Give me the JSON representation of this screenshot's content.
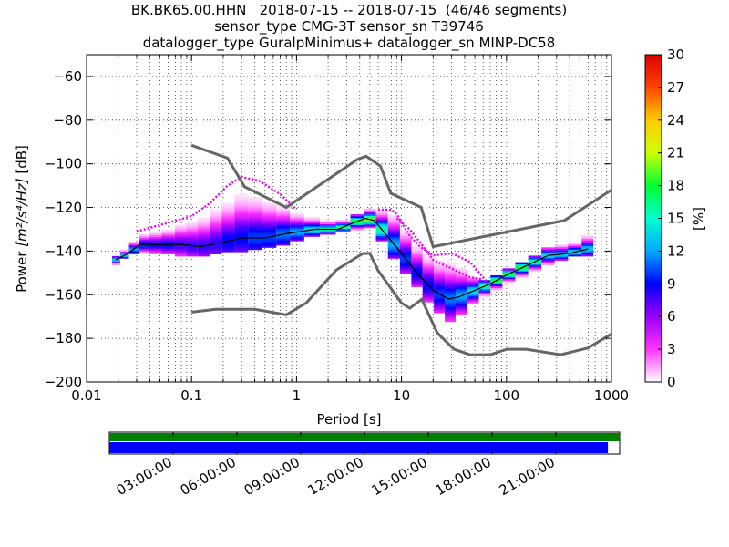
{
  "chart_data": {
    "type": "heatmap",
    "title_lines": [
      "BK.BK65.00.HHN   2018-07-15 -- 2018-07-15  (46/46 segments)",
      "sensor_type CMG-3T sensor_sn T39746",
      "datalogger_type GuralpMinimus+ datalogger_sn MINP-DC58"
    ],
    "xlabel": "Period [s]",
    "ylabel_prefix": "Power ",
    "ylabel_unit": "[m²/s⁴/Hz]",
    "ylabel_suffix": " [dB]",
    "x_scale": "log",
    "xlim": [
      0.01,
      1000
    ],
    "ylim": [
      -200,
      -50
    ],
    "x_ticks": [
      0.01,
      0.1,
      1,
      10,
      100,
      1000
    ],
    "x_tick_labels": [
      "0.01",
      "0.1",
      "1",
      "10",
      "100",
      "1000"
    ],
    "y_ticks": [
      -200,
      -180,
      -160,
      -140,
      -120,
      -100,
      -80,
      -60
    ],
    "y_tick_labels": [
      "−200",
      "−180",
      "−160",
      "−140",
      "−120",
      "−100",
      "−80",
      "−60"
    ],
    "grid": true,
    "colorbar": {
      "label": "[%]",
      "range": [
        0,
        30
      ],
      "ticks": [
        0,
        3,
        6,
        9,
        12,
        15,
        18,
        21,
        24,
        27,
        30
      ],
      "tick_labels": [
        "0",
        "3",
        "6",
        "9",
        "12",
        "15",
        "18",
        "21",
        "24",
        "27",
        "30"
      ],
      "colormap": [
        "#ffffff",
        "#ff33ff",
        "#9900ff",
        "#0000ff",
        "#00aaff",
        "#00ffcc",
        "#00ff33",
        "#ccff00",
        "#ffcc00",
        "#ff4400",
        "#dd0000"
      ]
    },
    "nhnm": {
      "name": "NHNM",
      "x": [
        0.1,
        0.22,
        0.32,
        0.8,
        3.8,
        4.6,
        6.3,
        7.9,
        15.4,
        20,
        354.8,
        1000
      ],
      "y": [
        -91.5,
        -97.4,
        -110.5,
        -120,
        -98,
        -96.5,
        -101,
        -113.5,
        -120,
        -138,
        -126,
        -112
      ]
    },
    "nlnm": {
      "name": "NLNM",
      "x": [
        0.1,
        0.17,
        0.4,
        0.8,
        1.24,
        2.4,
        4.3,
        5,
        6,
        10,
        12,
        15.6,
        21.9,
        31.6,
        45,
        70,
        101,
        154,
        328,
        600,
        1000
      ],
      "y": [
        -168,
        -166.7,
        -166.7,
        -169.2,
        -163.7,
        -148.6,
        -141.1,
        -141.1,
        -149,
        -163.8,
        -166.2,
        -162.1,
        -177.5,
        -185,
        -187.5,
        -187.5,
        -185,
        -185,
        -187.5,
        -184.4,
        -178
      ]
    },
    "mode_curve": {
      "x": [
        0.019,
        0.025,
        0.032,
        0.05,
        0.08,
        0.12,
        0.2,
        0.3,
        0.5,
        0.8,
        1.5,
        2.5,
        3.5,
        4.5,
        5.5,
        7,
        10,
        14,
        20,
        28,
        35,
        50,
        70,
        100,
        150,
        250,
        400,
        600
      ],
      "y": [
        -144,
        -141,
        -137,
        -137,
        -137,
        -138,
        -136,
        -134,
        -134,
        -132,
        -130,
        -130,
        -127,
        -125,
        -126,
        -132,
        -141,
        -150,
        -158,
        -162,
        -161,
        -158,
        -155,
        -151,
        -147,
        -142,
        -141,
        -139
      ]
    },
    "histogram_columns": [
      {
        "x": 0.019,
        "ymin": -146,
        "ymax": -142,
        "peak": 14
      },
      {
        "x": 0.023,
        "ymin": -143,
        "ymax": -139,
        "peak": 14
      },
      {
        "x": 0.028,
        "ymin": -141,
        "ymax": -135,
        "peak": 12
      },
      {
        "x": 0.035,
        "ymin": -140,
        "ymax": -132,
        "peak": 10
      },
      {
        "x": 0.045,
        "ymin": -141,
        "ymax": -131,
        "peak": 9
      },
      {
        "x": 0.06,
        "ymin": -141,
        "ymax": -129,
        "peak": 9
      },
      {
        "x": 0.08,
        "ymin": -142,
        "ymax": -126,
        "peak": 8
      },
      {
        "x": 0.1,
        "ymin": -142,
        "ymax": -123,
        "peak": 8
      },
      {
        "x": 0.13,
        "ymin": -142,
        "ymax": -120,
        "peak": 8
      },
      {
        "x": 0.17,
        "ymin": -141,
        "ymax": -114,
        "peak": 8
      },
      {
        "x": 0.22,
        "ymin": -140,
        "ymax": -110,
        "peak": 9
      },
      {
        "x": 0.3,
        "ymin": -140,
        "ymax": -107,
        "peak": 9
      },
      {
        "x": 0.4,
        "ymin": -139,
        "ymax": -108,
        "peak": 10
      },
      {
        "x": 0.55,
        "ymin": -138,
        "ymax": -111,
        "peak": 10
      },
      {
        "x": 0.75,
        "ymin": -137,
        "ymax": -116,
        "peak": 11
      },
      {
        "x": 1.0,
        "ymin": -135,
        "ymax": -121,
        "peak": 12
      },
      {
        "x": 1.4,
        "ymin": -133,
        "ymax": -124,
        "peak": 14
      },
      {
        "x": 2.0,
        "ymin": -132,
        "ymax": -126,
        "peak": 16
      },
      {
        "x": 2.8,
        "ymin": -131,
        "ymax": -126,
        "peak": 17
      },
      {
        "x": 3.8,
        "ymin": -130,
        "ymax": -123,
        "peak": 18
      },
      {
        "x": 5.0,
        "ymin": -129,
        "ymax": -121,
        "peak": 20
      },
      {
        "x": 6.5,
        "ymin": -135,
        "ymax": -121,
        "peak": 16
      },
      {
        "x": 8.5,
        "ymin": -143,
        "ymax": -121,
        "peak": 12
      },
      {
        "x": 11,
        "ymin": -150,
        "ymax": -128,
        "peak": 10
      },
      {
        "x": 14,
        "ymin": -156,
        "ymax": -135,
        "peak": 9
      },
      {
        "x": 18,
        "ymin": -163,
        "ymax": -140,
        "peak": 9
      },
      {
        "x": 23,
        "ymin": -168,
        "ymax": -143,
        "peak": 10
      },
      {
        "x": 29,
        "ymin": -172,
        "ymax": -145,
        "peak": 11
      },
      {
        "x": 37,
        "ymin": -169,
        "ymax": -148,
        "peak": 12
      },
      {
        "x": 48,
        "ymin": -164,
        "ymax": -152,
        "peak": 14
      },
      {
        "x": 62,
        "ymin": -161,
        "ymax": -153,
        "peak": 16
      },
      {
        "x": 80,
        "ymin": -158,
        "ymax": -151,
        "peak": 18
      },
      {
        "x": 105,
        "ymin": -154,
        "ymax": -148,
        "peak": 18
      },
      {
        "x": 140,
        "ymin": -152,
        "ymax": -145,
        "peak": 18
      },
      {
        "x": 185,
        "ymin": -149,
        "ymax": -142,
        "peak": 16
      },
      {
        "x": 250,
        "ymin": -146,
        "ymax": -138,
        "peak": 14
      },
      {
        "x": 330,
        "ymin": -144,
        "ymax": -137,
        "peak": 14
      },
      {
        "x": 450,
        "ymin": -142,
        "ymax": -135,
        "peak": 14
      },
      {
        "x": 600,
        "ymin": -142,
        "ymax": -132,
        "peak": 13
      }
    ],
    "outlier_traces": [
      {
        "x": [
          0.03,
          0.06,
          0.1,
          0.15,
          0.22,
          0.3,
          0.45,
          0.7,
          1.0
        ],
        "y": [
          -131,
          -127,
          -124,
          -118,
          -110,
          -106,
          -108,
          -114,
          -121
        ]
      },
      {
        "x": [
          6,
          7,
          8,
          9,
          10,
          12,
          15,
          20,
          30,
          45,
          60,
          70
        ],
        "y": [
          -121,
          -121,
          -121,
          -123,
          -127,
          -133,
          -138,
          -142,
          -141,
          -145,
          -152,
          -156
        ]
      },
      {
        "x": [
          9,
          12,
          15,
          20,
          30,
          45,
          60
        ],
        "y": [
          -125,
          -130,
          -136,
          -144,
          -148,
          -152,
          -153
        ]
      }
    ],
    "availability": {
      "tick_labels": [
        "03:00:00",
        "06:00:00",
        "09:00:00",
        "12:00:00",
        "15:00:00",
        "18:00:00",
        "21:00:00"
      ],
      "tick_hours": [
        3,
        6,
        9,
        12,
        15,
        18,
        21
      ],
      "range_hours": [
        0,
        24
      ],
      "data_coverage": [
        0,
        1
      ],
      "segments_coverage": [
        0,
        0.977
      ],
      "data_color": "#008000",
      "segments_color": "#0000ff"
    }
  }
}
